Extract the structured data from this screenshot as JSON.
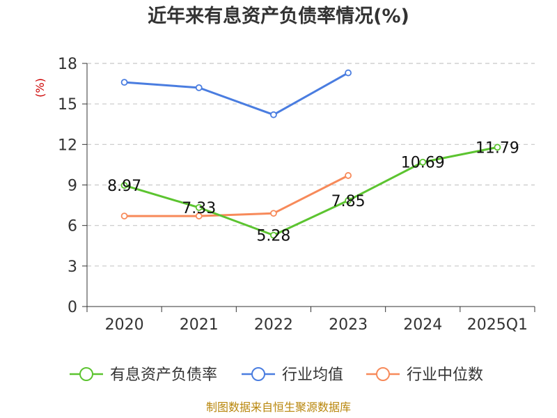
{
  "chart_data": {
    "type": "line",
    "title": "近年来有息资产负债率情况(%)",
    "ylabel": "(%)",
    "xlabel": "",
    "categories": [
      "2020",
      "2021",
      "2022",
      "2023",
      "2024",
      "2025Q1"
    ],
    "yticks": [
      0,
      3,
      6,
      9,
      12,
      15,
      18
    ],
    "ylim": [
      0,
      18
    ],
    "grid": true,
    "legend_position": "bottom",
    "series": [
      {
        "name": "有息资产负债率",
        "color": "#5cc430",
        "values": [
          8.97,
          7.33,
          5.28,
          7.85,
          10.69,
          11.79
        ],
        "labels": [
          "8.97",
          "7.33",
          "5.28",
          "7.85",
          "10.69",
          "11.79"
        ]
      },
      {
        "name": "行业均值",
        "color": "#4a7de0",
        "values": [
          16.6,
          16.2,
          14.2,
          17.3,
          null,
          null
        ]
      },
      {
        "name": "行业中位数",
        "color": "#f78a5a",
        "values": [
          6.7,
          6.7,
          6.9,
          9.7,
          null,
          null
        ]
      }
    ],
    "source": "制图数据来自恒生聚源数据库"
  }
}
